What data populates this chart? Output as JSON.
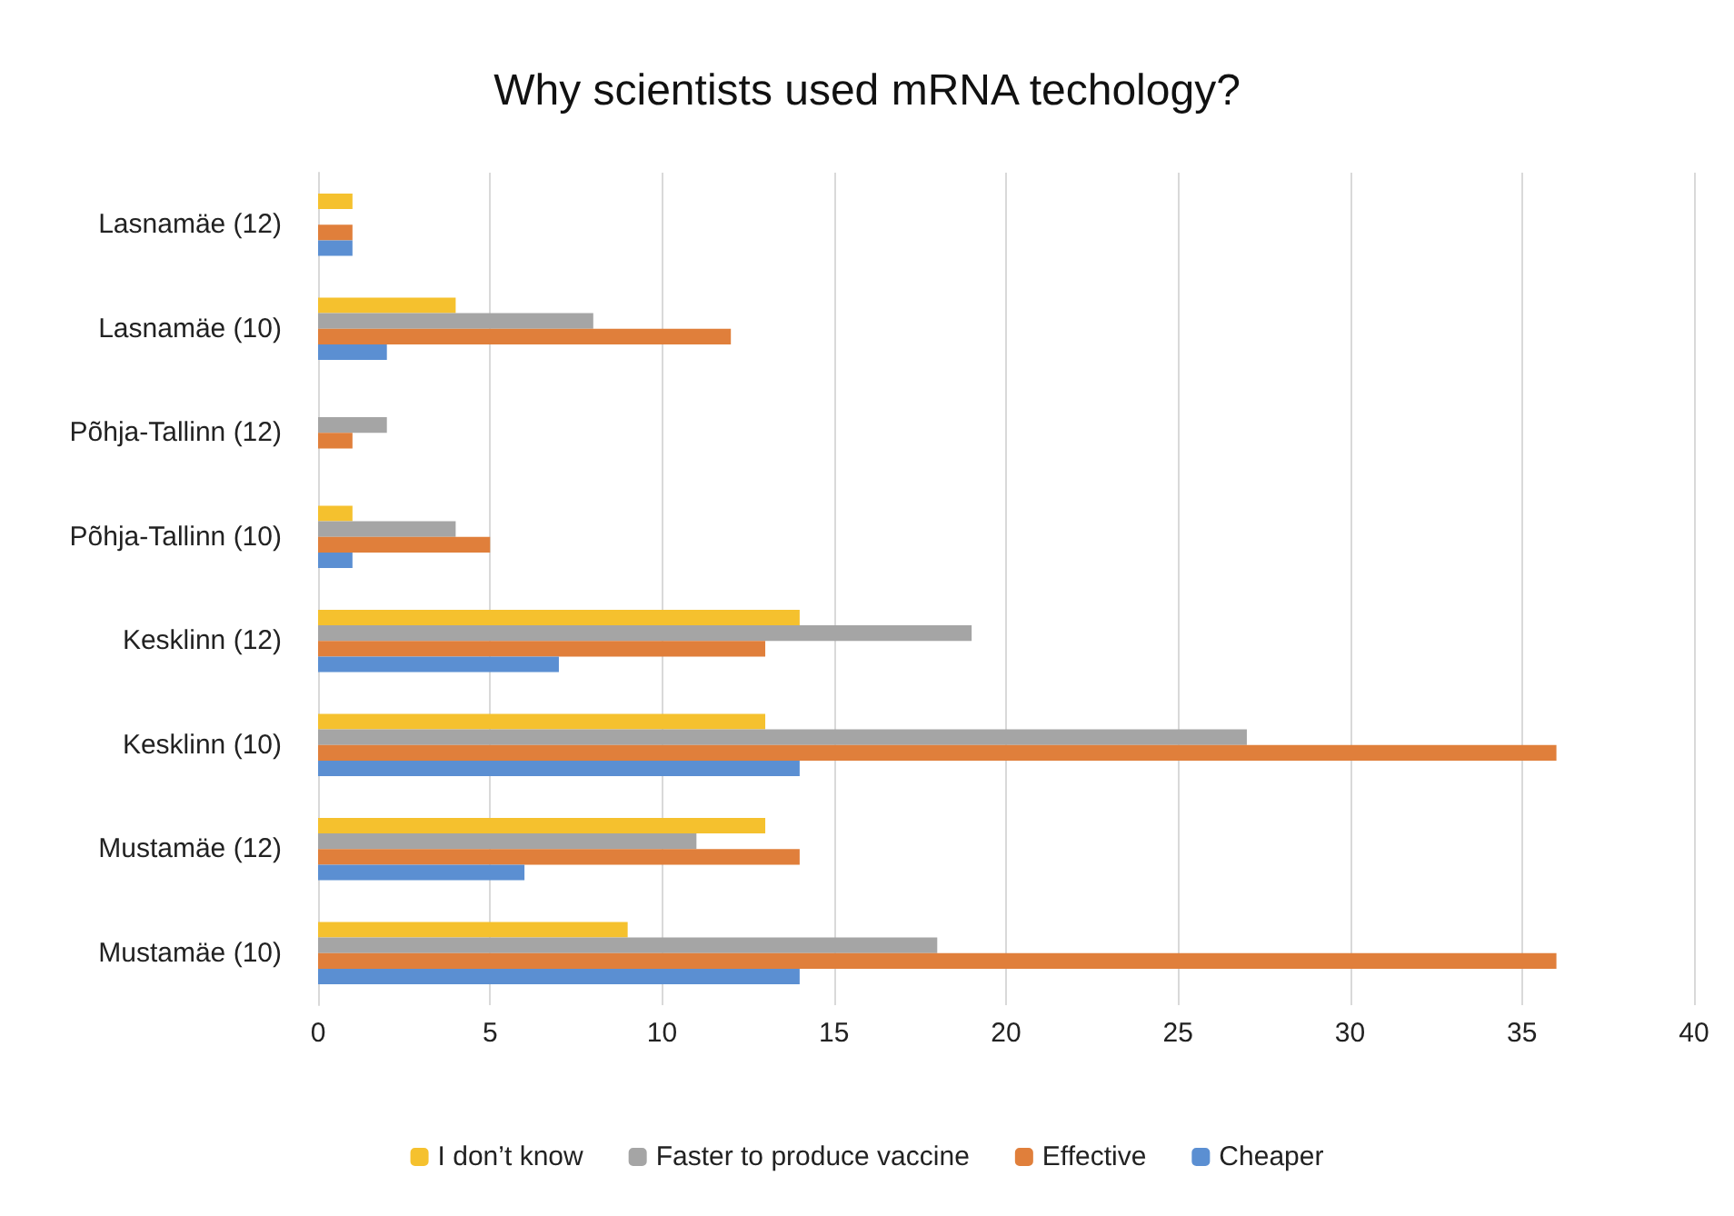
{
  "chart_data": {
    "type": "bar",
    "orientation": "horizontal",
    "title": "Why scientists used mRNA techology?",
    "categories": [
      "Lasnamäe (12)",
      "Lasnamäe (10)",
      "Põhja-Tallinn (12)",
      "Põhja-Tallinn (10)",
      "Kesklinn (12)",
      "Kesklinn (10)",
      "Mustamäe (12)",
      "Mustamäe (10)"
    ],
    "series": [
      {
        "name": "I don’t know",
        "color": "#f5c12e",
        "values": [
          1,
          4,
          0,
          1,
          14,
          13,
          13,
          9
        ]
      },
      {
        "name": "Faster to produce vaccine",
        "color": "#a5a5a5",
        "values": [
          0,
          8,
          2,
          4,
          19,
          27,
          11,
          18
        ]
      },
      {
        "name": "Effective",
        "color": "#e07f3b",
        "values": [
          1,
          12,
          1,
          5,
          13,
          36,
          14,
          36
        ]
      },
      {
        "name": "Cheaper",
        "color": "#5b8fd2",
        "values": [
          1,
          2,
          0,
          1,
          7,
          14,
          6,
          14
        ]
      }
    ],
    "xlim": [
      0,
      40
    ],
    "xticks": [
      0,
      5,
      10,
      15,
      20,
      25,
      30,
      35,
      40
    ],
    "grid": "x",
    "legend": "bottom"
  }
}
